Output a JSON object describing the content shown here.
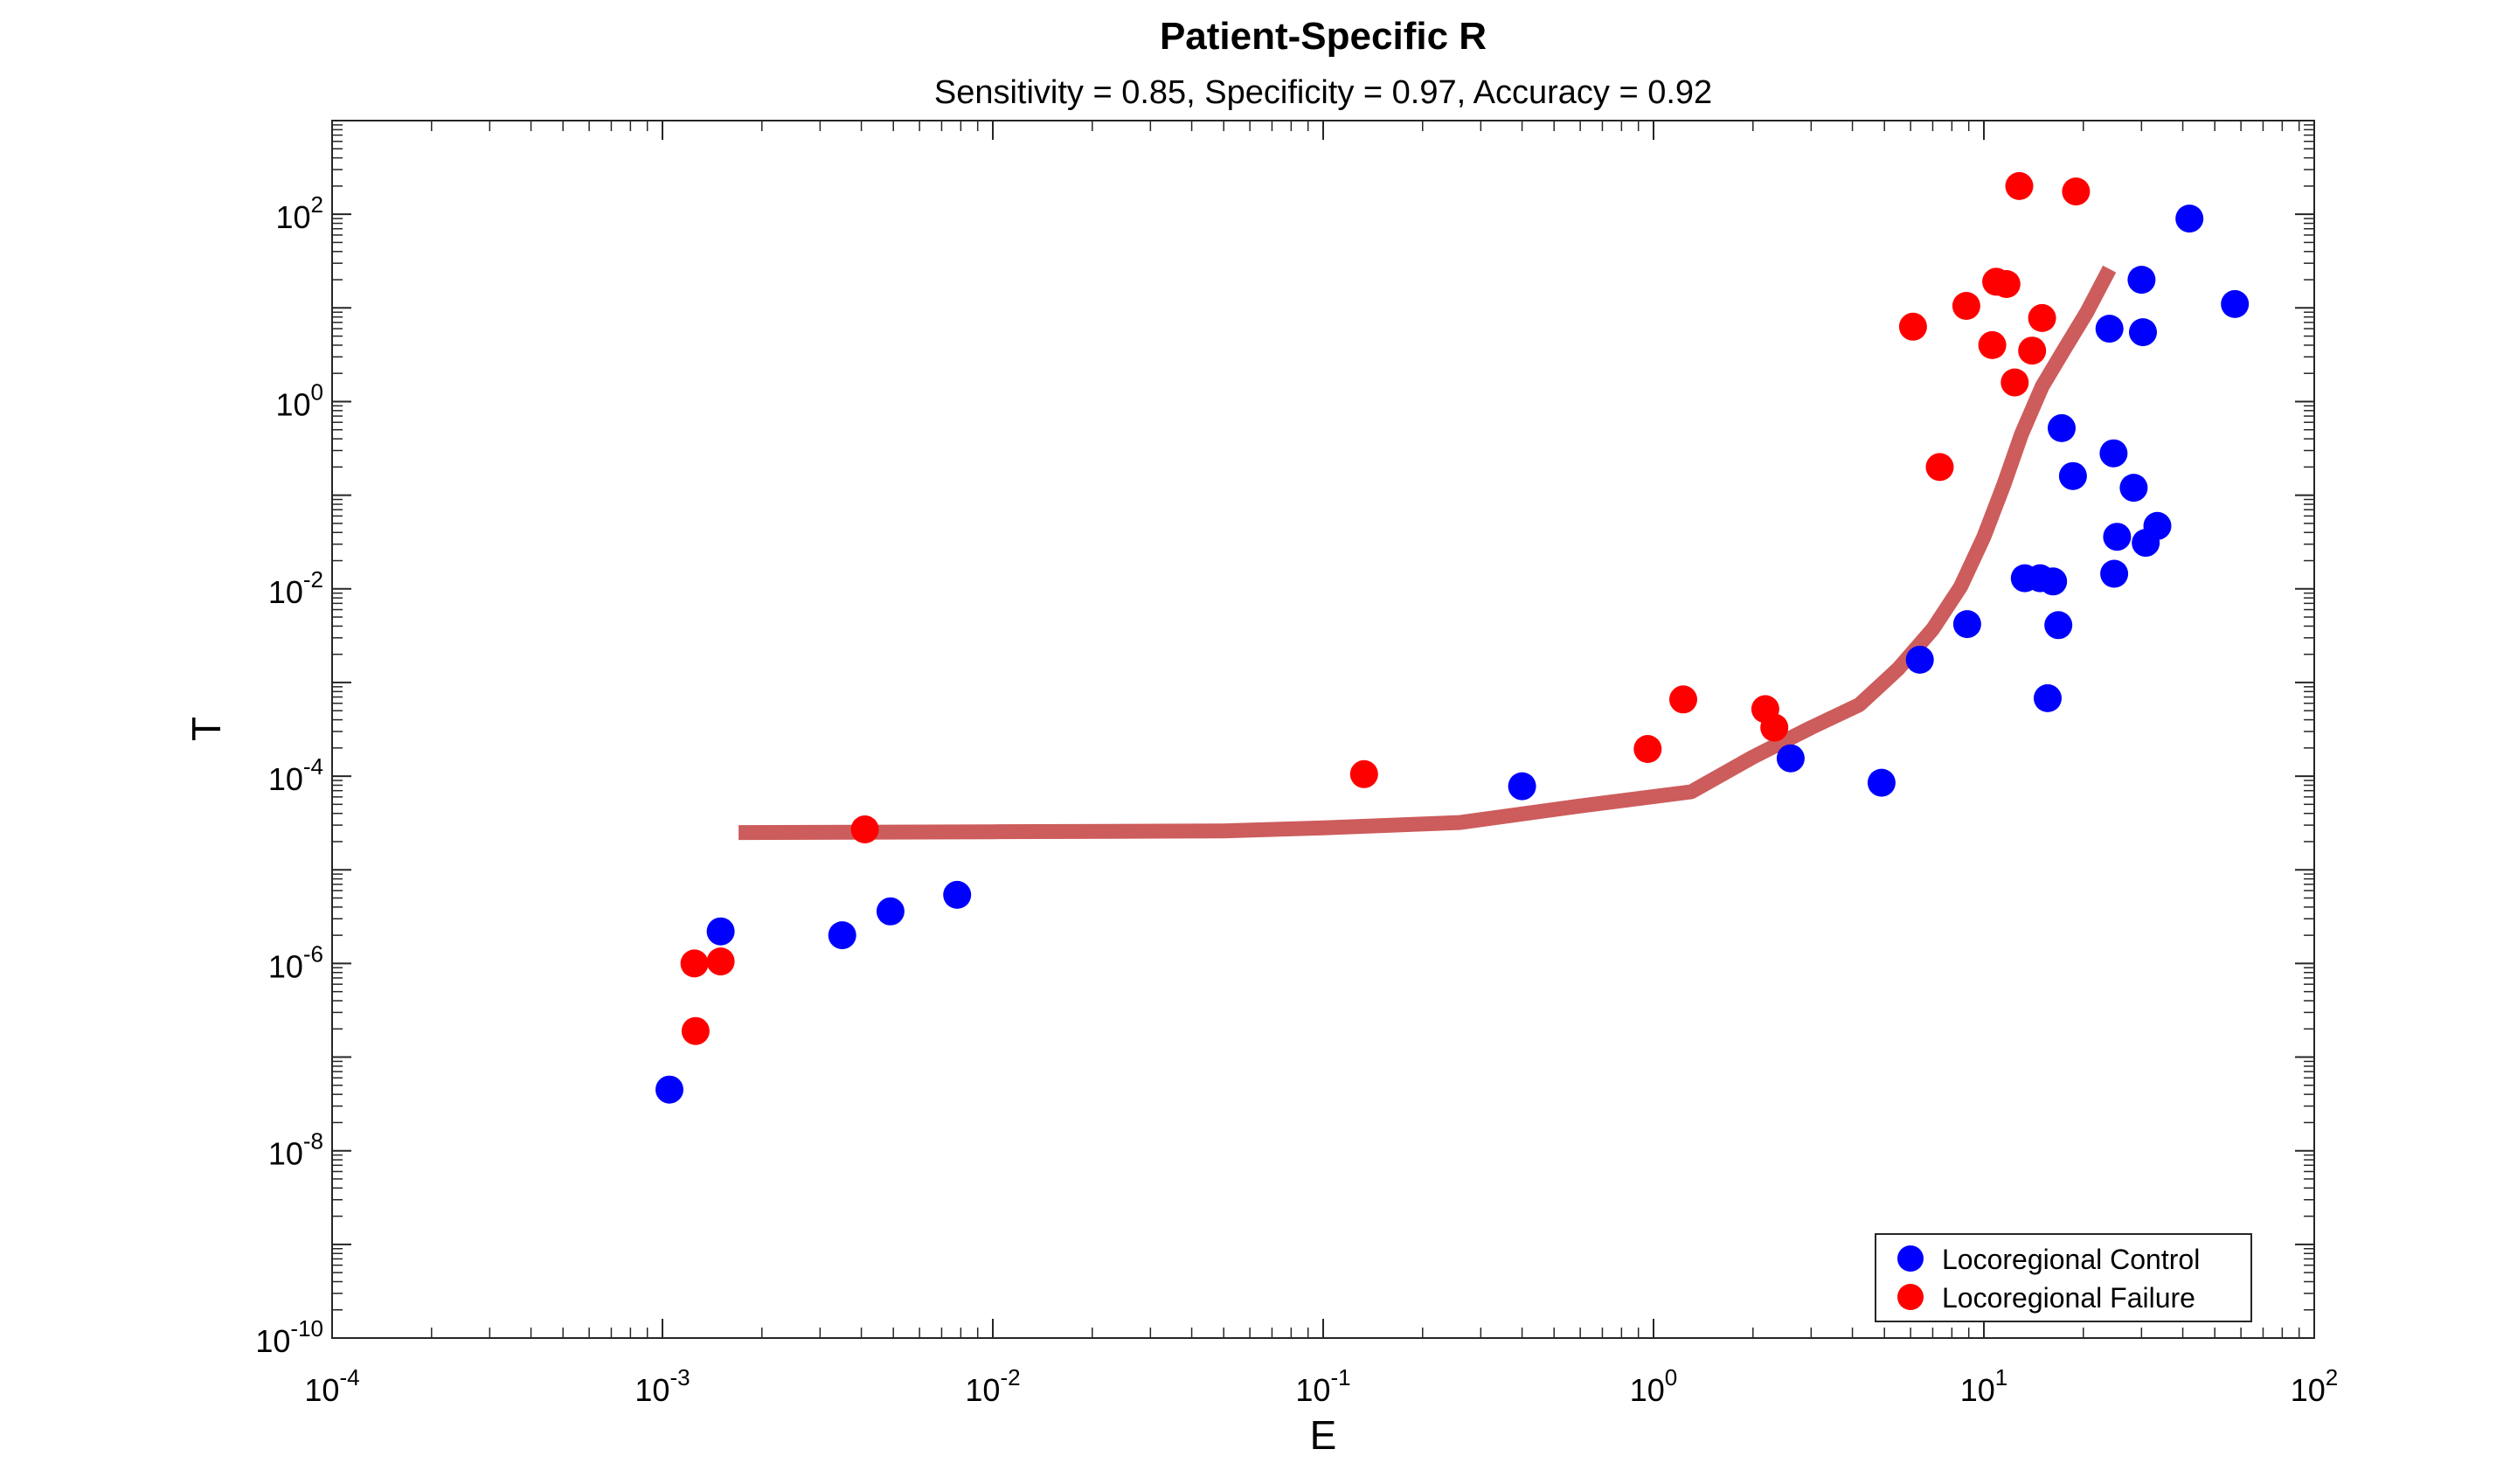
{
  "chart_data": {
    "type": "scatter",
    "title": "Patient-Specific R",
    "subtitle": "Sensitivity = 0.85, Specificity = 0.97, Accuracy = 0.92",
    "xlabel": "E",
    "ylabel": "T",
    "x_scale": "log",
    "y_scale": "log",
    "xlim": [
      0.0001,
      100
    ],
    "ylim": [
      1e-10,
      1000
    ],
    "x_ticks": [
      {
        "value": 0.0001,
        "base": "10",
        "exp": "-4"
      },
      {
        "value": 0.001,
        "base": "10",
        "exp": "-3"
      },
      {
        "value": 0.01,
        "base": "10",
        "exp": "-2"
      },
      {
        "value": 0.1,
        "base": "10",
        "exp": "-1"
      },
      {
        "value": 1,
        "base": "10",
        "exp": "0"
      },
      {
        "value": 10,
        "base": "10",
        "exp": "1"
      },
      {
        "value": 100,
        "base": "10",
        "exp": "2"
      }
    ],
    "y_ticks": [
      {
        "value": 1e-10,
        "base": "10",
        "exp": "-10"
      },
      {
        "value": 1e-08,
        "base": "10",
        "exp": "-8"
      },
      {
        "value": 1e-06,
        "base": "10",
        "exp": "-6"
      },
      {
        "value": 0.0001,
        "base": "10",
        "exp": "-4"
      },
      {
        "value": 0.01,
        "base": "10",
        "exp": "-2"
      },
      {
        "value": 1,
        "base": "10",
        "exp": "0"
      },
      {
        "value": 100,
        "base": "10",
        "exp": "2"
      }
    ],
    "grid": false,
    "legend_position": "bottom-right",
    "series": [
      {
        "name": "Locoregional Control",
        "color": "#0000ff",
        "points": [
          [
            0.00105,
            4.5e-08
          ],
          [
            0.0015,
            2.2e-06
          ],
          [
            0.0035,
            2e-06
          ],
          [
            0.0049,
            3.6e-06
          ],
          [
            0.0078,
            5.4e-06
          ],
          [
            0.4,
            7.8e-05
          ],
          [
            2.6,
            0.000155
          ],
          [
            4.9,
            8.5e-05
          ],
          [
            6.4,
            0.00175
          ],
          [
            8.9,
            0.0042
          ],
          [
            13.3,
            0.013
          ],
          [
            14.8,
            0.013
          ],
          [
            15.6,
            0.00068
          ],
          [
            16.2,
            0.012
          ],
          [
            16.8,
            0.0041
          ],
          [
            17.2,
            0.52
          ],
          [
            18.6,
            0.16
          ],
          [
            24.0,
            6.0
          ],
          [
            24.7,
            0.28
          ],
          [
            24.8,
            0.0145
          ],
          [
            25.3,
            0.036
          ],
          [
            28.4,
            0.12
          ],
          [
            30.0,
            20.0
          ],
          [
            30.3,
            5.5
          ],
          [
            30.9,
            0.031
          ],
          [
            33.5,
            0.047
          ],
          [
            41.9,
            90.0
          ],
          [
            57.5,
            11.0
          ]
        ]
      },
      {
        "name": "Locoregional Failure",
        "color": "#ff0000",
        "points": [
          [
            0.00125,
            1e-06
          ],
          [
            0.00126,
            1.9e-07
          ],
          [
            0.0015,
            1.05e-06
          ],
          [
            0.0041,
            2.7e-05
          ],
          [
            0.133,
            0.000105
          ],
          [
            0.96,
            0.000195
          ],
          [
            1.23,
            0.00066
          ],
          [
            2.18,
            0.00052
          ],
          [
            2.32,
            0.00033
          ],
          [
            6.1,
            6.3
          ],
          [
            7.35,
            0.2
          ],
          [
            8.85,
            10.5
          ],
          [
            10.6,
            4.0
          ],
          [
            10.9,
            19.0
          ],
          [
            11.7,
            18.0
          ],
          [
            12.4,
            1.6
          ],
          [
            12.8,
            200.0
          ],
          [
            14.0,
            3.5
          ],
          [
            15.0,
            7.8
          ],
          [
            19.0,
            175.0
          ]
        ]
      }
    ],
    "fit_line": {
      "color": "#cd5c5c",
      "points": [
        [
          0.0017,
          2.5e-05
        ],
        [
          0.01,
          2.55e-05
        ],
        [
          0.05,
          2.6e-05
        ],
        [
          0.1,
          2.8e-05
        ],
        [
          0.26,
          3.2e-05
        ],
        [
          0.6,
          4.8e-05
        ],
        [
          1.3,
          6.8e-05
        ],
        [
          2.0,
          0.00016
        ],
        [
          3.0,
          0.00033
        ],
        [
          4.2,
          0.00058
        ],
        [
          5.5,
          0.0014
        ],
        [
          7.0,
          0.0037
        ],
        [
          8.5,
          0.0105
        ],
        [
          10.0,
          0.036
        ],
        [
          11.5,
          0.13
        ],
        [
          13.0,
          0.45
        ],
        [
          15.0,
          1.45
        ],
        [
          17.5,
          3.6
        ],
        [
          20.5,
          9.0
        ],
        [
          24.0,
          26.0
        ]
      ]
    }
  }
}
